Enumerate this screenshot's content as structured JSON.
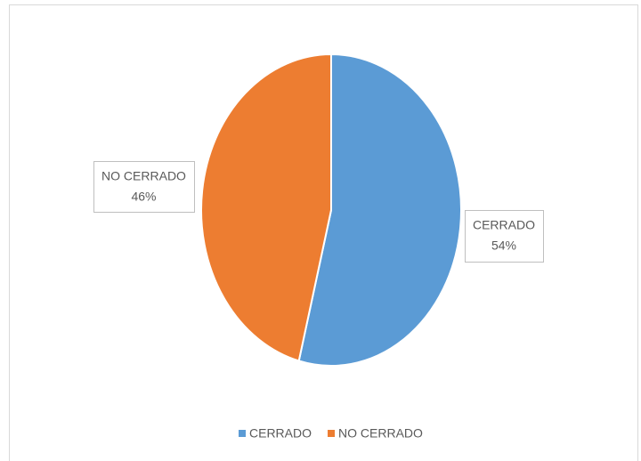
{
  "chart_data": {
    "type": "pie",
    "categories": [
      "CERRADO",
      "NO CERRADO"
    ],
    "values": [
      54,
      46
    ],
    "value_labels": [
      "54%",
      "46%"
    ],
    "colors": [
      "#5b9bd5",
      "#ed7d31"
    ],
    "legend": "bottom"
  }
}
